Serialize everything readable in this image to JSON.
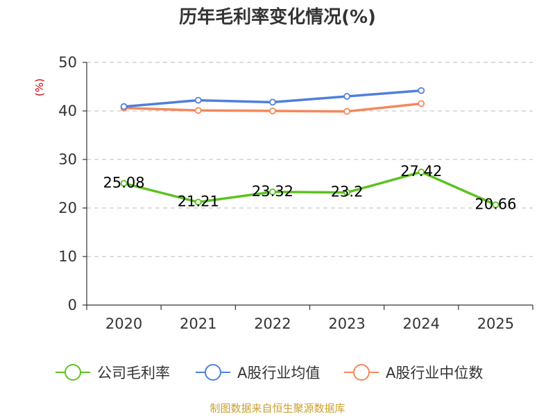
{
  "chart_data": {
    "type": "line",
    "title": "历年毛利率变化情况(%)",
    "ylabel": "(%)",
    "xlabel": "",
    "ylim": [
      0,
      50
    ],
    "yticks": [
      0,
      10,
      20,
      30,
      40,
      50
    ],
    "categories": [
      "2020",
      "2021",
      "2022",
      "2023",
      "2024",
      "2025"
    ],
    "grid": true,
    "legend_position": "bottom",
    "series": [
      {
        "name": "公司毛利率",
        "color": "#5cc21f",
        "values": [
          25.08,
          21.21,
          23.32,
          23.2,
          27.42,
          20.66
        ],
        "labels": [
          "25.08",
          "21.21",
          "23.32",
          "23.2",
          "27.42",
          "20.66"
        ]
      },
      {
        "name": "A股行业均值",
        "color": "#4f7fdc",
        "values": [
          40.9,
          42.2,
          41.8,
          43.0,
          44.2,
          null
        ]
      },
      {
        "name": "A股行业中位数",
        "color": "#f5885a",
        "values": [
          40.6,
          40.1,
          40.0,
          39.9,
          41.5,
          null
        ]
      }
    ],
    "source": "制图数据来自恒生聚源数据库"
  }
}
